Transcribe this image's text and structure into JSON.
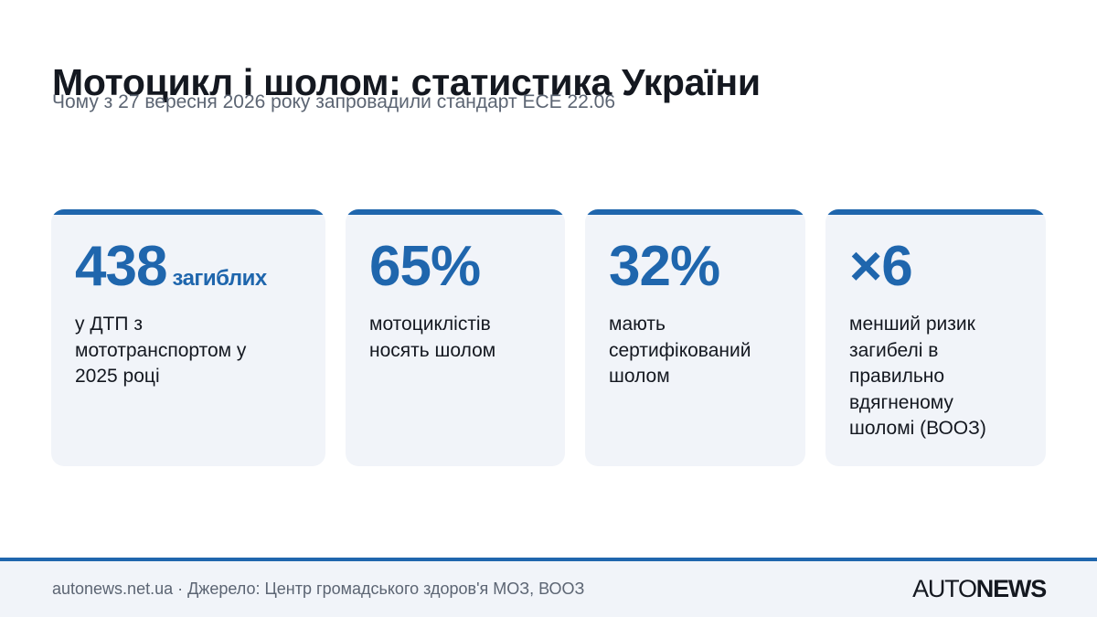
{
  "header": {
    "title": "Мотоцикл і шолом: статистика України",
    "subtitle": "Чому з 27 вересня 2026 року запровадили стандарт ECE 22.06"
  },
  "colors": {
    "accent": "#1f66ad",
    "card_bg": "#f1f4f9",
    "text": "#141820",
    "muted": "#5c6573"
  },
  "cards": [
    {
      "value": "438",
      "unit": "загиблих",
      "description": "у ДТП з мототранспортом у 2025 році"
    },
    {
      "value": "65%",
      "unit": "",
      "description": "мотоциклістів носять шолом"
    },
    {
      "value": "32%",
      "unit": "",
      "description": "мають сертифікований шолом"
    },
    {
      "value": "×6",
      "unit": "",
      "description": "менший ризик загибелі в правильно вдягненому шоломі (ВООЗ)"
    }
  ],
  "footer": {
    "source": "autonews.net.ua · Джерело: Центр громадського здоров'я МОЗ, ВООЗ",
    "logo_light": "AUTO",
    "logo_bold": "NEWS"
  }
}
